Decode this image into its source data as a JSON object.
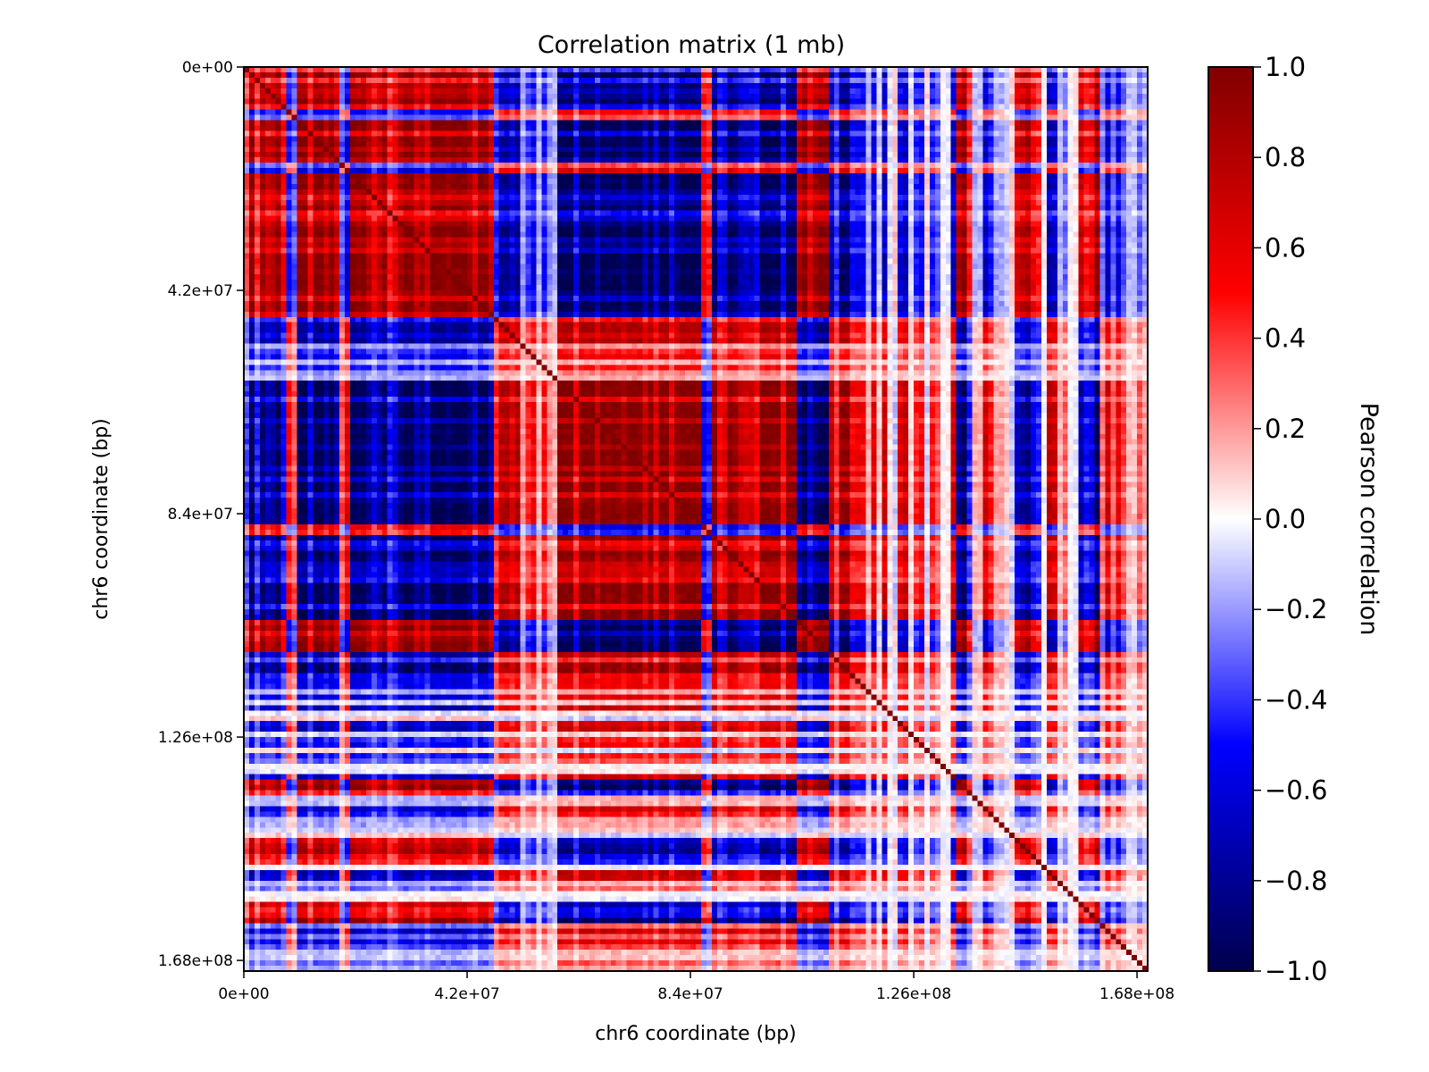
{
  "chart_data": {
    "type": "heatmap",
    "title": "Correlation matrix (1 mb)",
    "xlabel": "chr6 coordinate (bp)",
    "ylabel": "chr6 coordinate (bp)",
    "x_ticks": [
      {
        "value": 0,
        "label": "0e+00"
      },
      {
        "value": 42000000,
        "label": "4.2e+07"
      },
      {
        "value": 84000000,
        "label": "8.4e+07"
      },
      {
        "value": 126000000,
        "label": "1.26e+08"
      },
      {
        "value": 168000000,
        "label": "1.68e+08"
      }
    ],
    "y_ticks": [
      {
        "value": 0,
        "label": "0e+00"
      },
      {
        "value": 42000000,
        "label": "4.2e+07"
      },
      {
        "value": 84000000,
        "label": "8.4e+07"
      },
      {
        "value": 126000000,
        "label": "1.26e+08"
      },
      {
        "value": 168000000,
        "label": "1.68e+08"
      }
    ],
    "xlim": [
      0,
      170000000
    ],
    "ylim": [
      170000000,
      0
    ],
    "bin_size_bp": 1000000,
    "n_bins": 170,
    "colorbar": {
      "label": "Pearson correlation",
      "vmin": -1.0,
      "vmax": 1.0,
      "ticks": [
        {
          "value": 1.0,
          "label": "1.0"
        },
        {
          "value": 0.8,
          "label": "0.8"
        },
        {
          "value": 0.6,
          "label": "0.6"
        },
        {
          "value": 0.4,
          "label": "0.4"
        },
        {
          "value": 0.2,
          "label": "0.2"
        },
        {
          "value": 0.0,
          "label": "0.0"
        },
        {
          "value": -0.2,
          "label": "−0.2"
        },
        {
          "value": -0.4,
          "label": "−0.4"
        },
        {
          "value": -0.6,
          "label": "−0.6"
        },
        {
          "value": -0.8,
          "label": "−0.8"
        },
        {
          "value": -1.0,
          "label": "−1.0"
        }
      ],
      "colormap": "seismic",
      "colormap_stops": [
        "#00004c",
        "#0000ff",
        "#ffffff",
        "#ff0000",
        "#800000"
      ]
    },
    "compartment_profile_bp": [
      {
        "start": 0,
        "end": 8000000,
        "value": 0.85
      },
      {
        "start": 8000000,
        "end": 10000000,
        "value": -0.4
      },
      {
        "start": 10000000,
        "end": 18000000,
        "value": 0.85
      },
      {
        "start": 18000000,
        "end": 20000000,
        "value": -0.5
      },
      {
        "start": 20000000,
        "end": 24000000,
        "value": 0.9
      },
      {
        "start": 24000000,
        "end": 47000000,
        "value": 0.95
      },
      {
        "start": 47000000,
        "end": 57000000,
        "value": -0.5
      },
      {
        "start": 57000000,
        "end": 59000000,
        "value": 0.0
      },
      {
        "start": 59000000,
        "end": 86000000,
        "value": -0.85
      },
      {
        "start": 86000000,
        "end": 88000000,
        "value": 0.6
      },
      {
        "start": 88000000,
        "end": 104000000,
        "value": -0.95
      },
      {
        "start": 104000000,
        "end": 110000000,
        "value": 0.85
      },
      {
        "start": 110000000,
        "end": 121000000,
        "value": -0.55
      },
      {
        "start": 121000000,
        "end": 134000000,
        "value": -0.3
      },
      {
        "start": 134000000,
        "end": 137000000,
        "value": 0.8
      },
      {
        "start": 137000000,
        "end": 144000000,
        "value": -0.45
      },
      {
        "start": 144000000,
        "end": 150000000,
        "value": 0.5
      },
      {
        "start": 150000000,
        "end": 157000000,
        "value": -0.35
      },
      {
        "start": 157000000,
        "end": 161000000,
        "value": 0.75
      },
      {
        "start": 161000000,
        "end": 170000000,
        "value": -0.35
      }
    ]
  }
}
